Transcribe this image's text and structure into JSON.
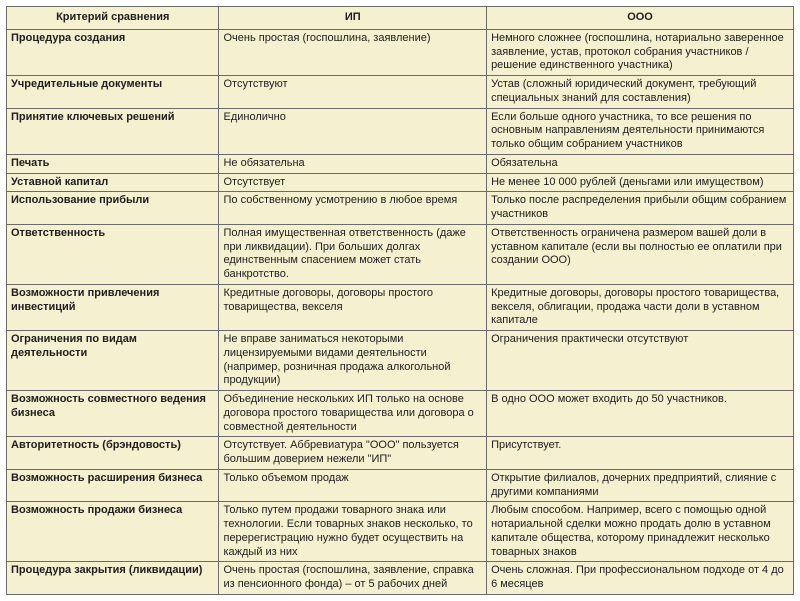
{
  "colors": {
    "background": "#f5f0cf",
    "border": "#6b6b6b",
    "text": "#202020"
  },
  "columns": [
    "Критерий сравнения",
    "ИП",
    "ООО"
  ],
  "rows": [
    {
      "criterion": "Процедура создания",
      "ip": "Очень простая (госпошлина, заявление)",
      "ooo": "Немного сложнее (госпошлина, нотариально заверенное заявление, устав, протокол собрания участников /решение единственного участника)"
    },
    {
      "criterion": "Учредительные документы",
      "ip": "Отсутствуют",
      "ooo": "Устав (сложный юридический документ, требующий специальных знаний для составления)"
    },
    {
      "criterion": "Принятие ключевых решений",
      "ip": "Единолично",
      "ooo": "Если больше одного участника, то все решения по основным направлениям деятельности принимаются только общим собранием участников"
    },
    {
      "criterion": "Печать",
      "ip": "Не обязательна",
      "ooo": "Обязательна"
    },
    {
      "criterion": "Уставной капитал",
      "ip": "Отсутствует",
      "ooo": "Не менее 10 000  рублей (деньгами или имуществом)"
    },
    {
      "criterion": "Использование прибыли",
      "ip": "По собственному усмотрению в любое время",
      "ooo": "Только после распределения прибыли общим собранием участников"
    },
    {
      "criterion": "Ответственность",
      "ip": "Полная имущественная ответственность (даже при ликвидации). При больших долгах единственным спасением может стать банкротство.",
      "ooo": "Ответственность ограничена размером вашей доли в уставном капитале (если вы полностью ее оплатили при создании ООО)"
    },
    {
      "criterion": "Возможности привлечения инвестиций",
      "ip": "Кредитные договоры, договоры простого товарищества, векселя",
      "ooo": "Кредитные договоры, договоры простого товарищества, векселя, облигации, продажа части доли в уставном капитале"
    },
    {
      "criterion": "Ограничения по видам деятельности",
      "ip": "Не вправе заниматься некоторыми лицензируемыми  видами деятельности (например, розничная продажа алкогольной продукции)",
      "ooo": "Ограничения практически отсутствуют"
    },
    {
      "criterion": "Возможность совместного ведения бизнеса",
      "ip": "Объединение нескольких ИП только на основе договора простого товарищества или договора о совместной деятельности",
      "ooo": "В одно ООО может входить до 50 участников."
    },
    {
      "criterion": "Авторитетность (брэндовость)",
      "ip": "Отсутствует. Аббревиатура \"ООО\" пользуется большим доверием нежели \"ИП\"",
      "ooo": "Присутствует."
    },
    {
      "criterion": "Возможность расширения бизнеса",
      "ip": "Только объемом продаж",
      "ooo": "Открытие филиалов, дочерних предприятий, слияние с другими компаниями"
    },
    {
      "criterion": "Возможность продажи бизнеса",
      "ip": "Только путем продажи товарного знака или технологии. Если товарных знаков несколько, то перерегистрацию нужно будет осуществить на каждый из них",
      "ooo": "Любым способом. Например, всего с помощью одной нотариальной сделки можно продать долю в уставном капитале общества, которому принадлежит несколько товарных знаков"
    },
    {
      "criterion": "Процедура закрытия (ликвидации)",
      "ip": "Очень простая (госпошлина, заявление, справка из пенсионного фонда) – от 5 рабочих дней",
      "ooo": "Очень сложная. При профессиональном  подходе от 4 до 6 месяцев"
    }
  ]
}
